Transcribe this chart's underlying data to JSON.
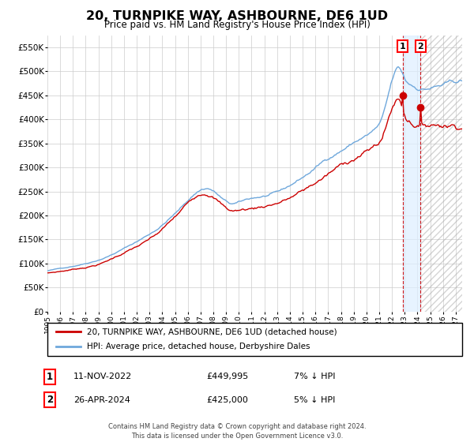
{
  "title": "20, TURNPIKE WAY, ASHBOURNE, DE6 1UD",
  "subtitle": "Price paid vs. HM Land Registry's House Price Index (HPI)",
  "legend_line1": "20, TURNPIKE WAY, ASHBOURNE, DE6 1UD (detached house)",
  "legend_line2": "HPI: Average price, detached house, Derbyshire Dales",
  "footer": "Contains HM Land Registry data © Crown copyright and database right 2024.\nThis data is licensed under the Open Government Licence v3.0.",
  "transaction1_date": "11-NOV-2022",
  "transaction1_price": 449995,
  "transaction1_label": "7% ↓ HPI",
  "transaction2_date": "26-APR-2024",
  "transaction2_price": 425000,
  "transaction2_label": "5% ↓ HPI",
  "hpi_color": "#6fa8dc",
  "price_color": "#cc0000",
  "start_year": 1995,
  "end_year": 2027,
  "ylim_max": 575000,
  "ylim_min": 0,
  "yticks": [
    0,
    50000,
    100000,
    150000,
    200000,
    250000,
    300000,
    350000,
    400000,
    450000,
    500000,
    550000
  ],
  "ytick_labels": [
    "£0",
    "£50K",
    "£100K",
    "£150K",
    "£200K",
    "£250K",
    "£300K",
    "£350K",
    "£400K",
    "£450K",
    "£500K",
    "£550K"
  ],
  "background_color": "#ffffff",
  "grid_color": "#cccccc"
}
